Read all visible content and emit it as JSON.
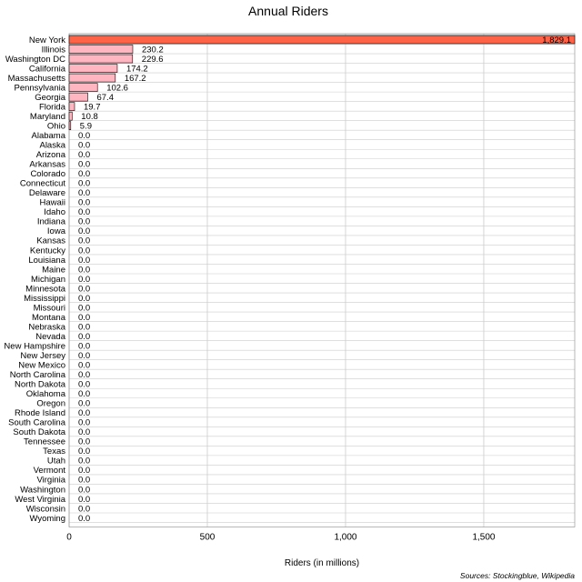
{
  "chart_data": {
    "type": "bar",
    "orientation": "horizontal",
    "title": "Annual Riders",
    "xlabel": "Riders (in millions)",
    "ylabel": "",
    "xlim": [
      0,
      1829.1
    ],
    "xticks": [
      0,
      500,
      1000,
      1500
    ],
    "xtick_labels": [
      "0",
      "500",
      "1,000",
      "1,500"
    ],
    "grid": true,
    "categories": [
      "New York",
      "Illinois",
      "Washington DC",
      "California",
      "Massachusetts",
      "Pennsylvania",
      "Georgia",
      "Florida",
      "Maryland",
      "Ohio",
      "Alabama",
      "Alaska",
      "Arizona",
      "Arkansas",
      "Colorado",
      "Connecticut",
      "Delaware",
      "Hawaii",
      "Idaho",
      "Indiana",
      "Iowa",
      "Kansas",
      "Kentucky",
      "Louisiana",
      "Maine",
      "Michigan",
      "Minnesota",
      "Mississippi",
      "Missouri",
      "Montana",
      "Nebraska",
      "Nevada",
      "New Hampshire",
      "New Jersey",
      "New Mexico",
      "North Carolina",
      "North Dakota",
      "Oklahoma",
      "Oregon",
      "Rhode Island",
      "South Carolina",
      "South Dakota",
      "Tennessee",
      "Texas",
      "Utah",
      "Vermont",
      "Virginia",
      "Washington",
      "West Virginia",
      "Wisconsin",
      "Wyoming"
    ],
    "values": [
      1829.1,
      230.2,
      229.6,
      174.2,
      167.2,
      102.6,
      67.4,
      19.7,
      10.8,
      5.9,
      0.0,
      0.0,
      0.0,
      0.0,
      0.0,
      0.0,
      0.0,
      0.0,
      0.0,
      0.0,
      0.0,
      0.0,
      0.0,
      0.0,
      0.0,
      0.0,
      0.0,
      0.0,
      0.0,
      0.0,
      0.0,
      0.0,
      0.0,
      0.0,
      0.0,
      0.0,
      0.0,
      0.0,
      0.0,
      0.0,
      0.0,
      0.0,
      0.0,
      0.0,
      0.0,
      0.0,
      0.0,
      0.0,
      0.0,
      0.0,
      0.0
    ],
    "value_labels": [
      "1,829.1",
      "230.2",
      "229.6",
      "174.2",
      "167.2",
      "102.6",
      "67.4",
      "19.7",
      "10.8",
      "5.9",
      "0.0",
      "0.0",
      "0.0",
      "0.0",
      "0.0",
      "0.0",
      "0.0",
      "0.0",
      "0.0",
      "0.0",
      "0.0",
      "0.0",
      "0.0",
      "0.0",
      "0.0",
      "0.0",
      "0.0",
      "0.0",
      "0.0",
      "0.0",
      "0.0",
      "0.0",
      "0.0",
      "0.0",
      "0.0",
      "0.0",
      "0.0",
      "0.0",
      "0.0",
      "0.0",
      "0.0",
      "0.0",
      "0.0",
      "0.0",
      "0.0",
      "0.0",
      "0.0",
      "0.0",
      "0.0",
      "0.0",
      "0.0"
    ],
    "source": "Sources: Stockingblue, Wikipedia",
    "colors": {
      "highlight_bar": "#ff6347",
      "bar": "#ffb6c1",
      "bar_stroke": "#000000",
      "grid": "#cccccc"
    }
  }
}
